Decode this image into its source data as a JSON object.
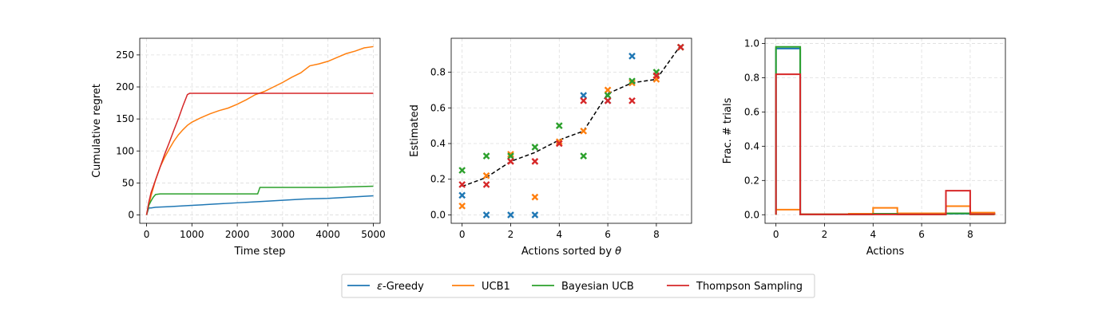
{
  "colors": {
    "egreedy": "#1f77b4",
    "ucb1": "#ff7f0e",
    "bayes_ucb": "#2ca02c",
    "thompson": "#d62728",
    "true_values": "#000000",
    "grid": "#dddddd"
  },
  "legend": {
    "placement": "bottom-center",
    "entries": [
      {
        "label_prefix": "ε",
        "label": "-Greedy",
        "color": "#1f77b4"
      },
      {
        "label_prefix": "",
        "label": "UCB1",
        "color": "#ff7f0e"
      },
      {
        "label_prefix": "",
        "label": "Bayesian UCB",
        "color": "#2ca02c"
      },
      {
        "label_prefix": "",
        "label": "Thompson Sampling",
        "color": "#d62728"
      }
    ]
  },
  "chart_data": [
    {
      "type": "line",
      "title": "",
      "xlabel": "Time step",
      "ylabel": "Cumulative regret",
      "xlim": [
        -150,
        5150
      ],
      "ylim": [
        -13,
        276
      ],
      "xticks": [
        0,
        1000,
        2000,
        3000,
        4000,
        5000
      ],
      "yticks": [
        0,
        50,
        100,
        150,
        200,
        250
      ],
      "grid": true,
      "series": [
        {
          "name": "ε-Greedy",
          "color": "#1f77b4",
          "x": [
            0,
            50,
            100,
            200,
            500,
            1000,
            1500,
            2000,
            2500,
            3000,
            3500,
            4000,
            4500,
            5000
          ],
          "y": [
            0,
            11,
            11,
            12,
            13,
            15,
            17,
            19,
            21,
            23,
            25,
            26,
            28,
            30
          ]
        },
        {
          "name": "UCB1",
          "color": "#ff7f0e",
          "x": [
            0,
            50,
            100,
            200,
            300,
            400,
            500,
            600,
            700,
            800,
            900,
            1000,
            1200,
            1400,
            1600,
            1800,
            2000,
            2200,
            2400,
            2600,
            2800,
            3000,
            3200,
            3400,
            3600,
            3800,
            4000,
            4200,
            4400,
            4600,
            4800,
            5000
          ],
          "y": [
            0,
            15,
            30,
            55,
            75,
            90,
            103,
            115,
            125,
            133,
            140,
            145,
            152,
            158,
            163,
            167,
            173,
            180,
            188,
            193,
            200,
            207,
            215,
            222,
            233,
            236,
            240,
            246,
            252,
            256,
            261,
            263
          ]
        },
        {
          "name": "Bayesian UCB",
          "color": "#2ca02c",
          "x": [
            0,
            50,
            100,
            150,
            200,
            300,
            1000,
            2000,
            2450,
            2500,
            3000,
            4000,
            5000
          ],
          "y": [
            0,
            15,
            22,
            28,
            32,
            33,
            33,
            33,
            33,
            43,
            43,
            43,
            45
          ]
        },
        {
          "name": "Thompson Sampling",
          "color": "#d62728",
          "x": [
            0,
            50,
            100,
            200,
            300,
            400,
            500,
            600,
            700,
            800,
            900,
            950,
            1000,
            2000,
            3000,
            4000,
            5000
          ],
          "y": [
            0,
            20,
            35,
            55,
            75,
            95,
            113,
            132,
            150,
            170,
            188,
            190,
            190,
            190,
            190,
            190,
            190
          ]
        }
      ]
    },
    {
      "type": "scatter",
      "title": "",
      "xlabel": "Actions sorted by ",
      "xlabel_symbol": "θ",
      "ylabel": "Estimated",
      "xlim": [
        -0.45,
        9.45
      ],
      "ylim": [
        -0.047,
        0.99
      ],
      "xticks": [
        0,
        2,
        4,
        6,
        8
      ],
      "yticks": [
        0.0,
        0.2,
        0.4,
        0.6,
        0.8
      ],
      "grid": true,
      "true_values": {
        "x": [
          0,
          1,
          2,
          3,
          4,
          5,
          6,
          7,
          8,
          9
        ],
        "y": [
          0.16,
          0.21,
          0.3,
          0.35,
          0.42,
          0.47,
          0.68,
          0.74,
          0.76,
          0.95
        ]
      },
      "series": [
        {
          "name": "ε-Greedy",
          "color": "#1f77b4",
          "x": [
            0,
            1,
            2,
            3,
            5,
            6,
            7,
            9
          ],
          "y": [
            0.11,
            0.0,
            0.0,
            0.0,
            0.67,
            0.64,
            0.89,
            0.94
          ]
        },
        {
          "name": "UCB1",
          "color": "#ff7f0e",
          "x": [
            0,
            1,
            2,
            3,
            4,
            5,
            6,
            7,
            8,
            9
          ],
          "y": [
            0.05,
            0.22,
            0.34,
            0.1,
            0.41,
            0.47,
            0.7,
            0.74,
            0.76,
            0.94
          ]
        },
        {
          "name": "Bayesian UCB",
          "color": "#2ca02c",
          "x": [
            0,
            1,
            2,
            3,
            4,
            5,
            6,
            7,
            8,
            9
          ],
          "y": [
            0.25,
            0.33,
            0.33,
            0.38,
            0.5,
            0.33,
            0.67,
            0.75,
            0.8,
            0.94
          ]
        },
        {
          "name": "Thompson Sampling",
          "color": "#d62728",
          "x": [
            0,
            1,
            2,
            3,
            4,
            5,
            6,
            7,
            8,
            9
          ],
          "y": [
            0.17,
            0.17,
            0.3,
            0.3,
            0.4,
            0.64,
            0.64,
            0.64,
            0.78,
            0.94
          ]
        }
      ]
    },
    {
      "type": "step",
      "title": "",
      "xlabel": "Actions",
      "ylabel": "Frac. # trials",
      "xlim": [
        -0.45,
        9.45
      ],
      "ylim": [
        -0.05,
        1.03
      ],
      "xticks": [
        0,
        2,
        4,
        6,
        8
      ],
      "yticks": [
        0.0,
        0.2,
        0.4,
        0.6,
        0.8,
        1.0
      ],
      "grid": true,
      "series": [
        {
          "name": "ε-Greedy",
          "color": "#1f77b4",
          "bins": [
            0,
            1,
            2,
            3,
            4,
            5,
            6,
            7,
            8,
            9
          ],
          "values": [
            0.97,
            0.003,
            0.003,
            0.003,
            0.004,
            0.003,
            0.003,
            0.006,
            0.004
          ]
        },
        {
          "name": "UCB1",
          "color": "#ff7f0e",
          "bins": [
            0,
            1,
            2,
            3,
            4,
            5,
            6,
            7,
            8,
            9
          ],
          "values": [
            0.03,
            0.003,
            0.003,
            0.006,
            0.04,
            0.008,
            0.008,
            0.05,
            0.012
          ]
        },
        {
          "name": "Bayesian UCB",
          "color": "#2ca02c",
          "bins": [
            0,
            1,
            2,
            3,
            4,
            5,
            6,
            7,
            8,
            9
          ],
          "values": [
            0.98,
            0.002,
            0.002,
            0.002,
            0.006,
            0.002,
            0.002,
            0.008,
            0.002
          ]
        },
        {
          "name": "Thompson Sampling",
          "color": "#d62728",
          "bins": [
            0,
            1,
            2,
            3,
            4,
            5,
            6,
            7,
            8,
            9
          ],
          "values": [
            0.82,
            0.002,
            0.002,
            0.002,
            0.002,
            0.002,
            0.002,
            0.14,
            0.003
          ]
        }
      ]
    }
  ]
}
